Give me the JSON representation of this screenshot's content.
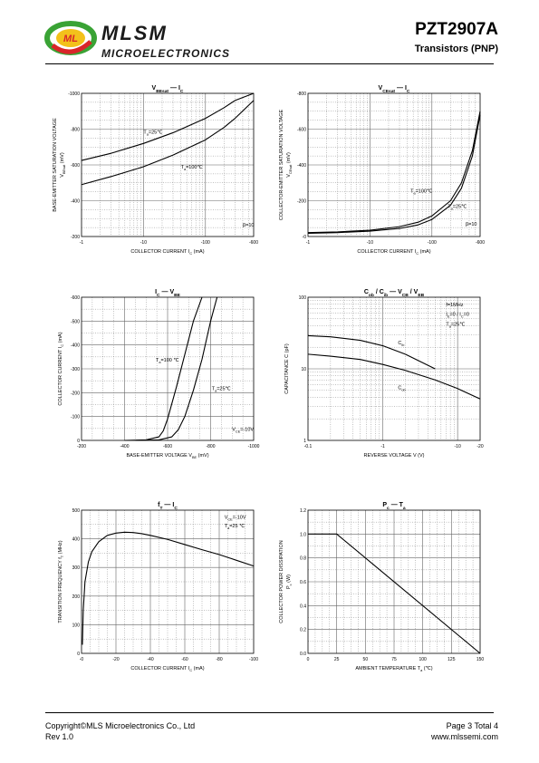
{
  "header": {
    "brand": "MLSM",
    "brand_sub": "MICROELECTRONICS",
    "logo_text": "ML",
    "part_number": "PZT2907A",
    "part_type": "Transistors (PNP)"
  },
  "footer": {
    "copyright": "Copyright©MLS Microelectronics Co., Ltd",
    "rev": "Rev 1.0",
    "page": "Page 3 Total 4",
    "website": "www.mlssemi.com"
  },
  "colors": {
    "logo_green": "#3aa335",
    "logo_red": "#d9252a",
    "logo_yellow": "#f3c11b",
    "grid": "#555555",
    "curve": "#000000"
  },
  "chart_data": [
    {
      "id": "vbesat",
      "type": "line",
      "title": "VBEsat — IC",
      "title_parts": {
        "a": "V",
        "a_sub": "BEsat",
        "b": "I",
        "b_sub": "C"
      },
      "xlabel": "COLLECTOR CURRENT   I",
      "xlabel_sub": "C",
      "xunit": "(mA)",
      "ylabel": "BASE-EMITTER SATURATION VOLTAGE",
      "ylabel_sym": "V",
      "ylabel_sub": "BEsat",
      "yunit": "(mV)",
      "x_scale": "log",
      "xlim": [
        -1,
        -600
      ],
      "x_ticks": [
        -1,
        -10,
        -100,
        -600
      ],
      "x_ticklabels": [
        "-1",
        "-10",
        "-100",
        "-600"
      ],
      "ylim": [
        -200,
        -1000
      ],
      "y_ticks": [
        -200,
        -400,
        -600,
        -800,
        -1000
      ],
      "y_ticklabels": [
        "-200",
        "-400",
        "-600",
        "-800",
        "-1000"
      ],
      "series": [
        {
          "x": [
            -1,
            -3,
            -10,
            -30,
            -100,
            -200,
            -300,
            -600
          ],
          "y": [
            -625,
            -665,
            -720,
            -780,
            -860,
            -920,
            -960,
            -1000
          ]
        },
        {
          "x": [
            -1,
            -3,
            -10,
            -30,
            -100,
            -200,
            -300,
            -600
          ],
          "y": [
            -490,
            -535,
            -590,
            -655,
            -740,
            -810,
            -860,
            -960
          ]
        }
      ],
      "annotations": [
        {
          "text": "T",
          "sub": "a",
          "rest": "=25℃",
          "x": -10,
          "y": -775
        },
        {
          "text": "T",
          "sub": "a",
          "rest": "=100℃",
          "x": -40,
          "y": -580
        },
        {
          "text": "β=10",
          "x": -400,
          "y": -255
        }
      ],
      "grid": true
    },
    {
      "id": "vcesat",
      "type": "line",
      "title": "VCEsat — IC",
      "title_parts": {
        "a": "V",
        "a_sub": "CEsat",
        "b": "I",
        "b_sub": "C"
      },
      "xlabel": "COLLECTOR CURRENT   I",
      "xlabel_sub": "C",
      "xunit": "(mA)",
      "ylabel": "COLLECTOR-EMITTER SATURATION VOLTAGE",
      "ylabel_sym": "V",
      "ylabel_sub": "CEsat",
      "yunit": "(mV)",
      "x_scale": "log",
      "xlim": [
        -1,
        -600
      ],
      "x_ticks": [
        -1,
        -10,
        -100,
        -600
      ],
      "x_ticklabels": [
        "-1",
        "-10",
        "-100",
        "-600"
      ],
      "ylim": [
        0,
        -800
      ],
      "y_ticks": [
        0,
        -200,
        -400,
        -600,
        -800
      ],
      "y_ticklabels": [
        "-0",
        "-200",
        "-400",
        "-600",
        "-800"
      ],
      "series": [
        {
          "x": [
            -1,
            -3,
            -10,
            -30,
            -60,
            -100,
            -200,
            -300,
            -450,
            -600
          ],
          "y": [
            -22,
            -26,
            -35,
            -55,
            -80,
            -115,
            -200,
            -300,
            -480,
            -700
          ]
        },
        {
          "x": [
            -1,
            -3,
            -10,
            -30,
            -60,
            -100,
            -200,
            -300,
            -450,
            -600
          ],
          "y": [
            -18,
            -22,
            -30,
            -45,
            -65,
            -95,
            -175,
            -270,
            -450,
            -680
          ]
        }
      ],
      "annotations": [
        {
          "text": "T",
          "sub": "a",
          "rest": "=100℃",
          "x": -45,
          "y": -245
        },
        {
          "text": "T",
          "sub": "a",
          "rest": "=25℃",
          "x": -180,
          "y": -160
        },
        {
          "text": "β=10",
          "x": -350,
          "y": -60
        }
      ],
      "grid": true
    },
    {
      "id": "ic_vbe",
      "type": "line",
      "title": "IC — VBE",
      "title_parts": {
        "a": "I",
        "a_sub": "C",
        "b": "V",
        "b_sub": "BE"
      },
      "xlabel": "BASE-EMITTER VOLTAGE    V",
      "xlabel_sub": "BE",
      "xunit": "(mV)",
      "ylabel": "COLLECTOR CURRENT    I",
      "ylabel_sub": "C",
      "yunit": "(mA)",
      "x_scale": "linear",
      "xlim": [
        -200,
        -1000
      ],
      "x_ticks": [
        -200,
        -400,
        -600,
        -800,
        -1000
      ],
      "x_ticklabels": [
        "-200",
        "-400",
        "-600",
        "-800",
        "-1000"
      ],
      "ylim": [
        0,
        -600
      ],
      "y_ticks": [
        0,
        -100,
        -200,
        -300,
        -400,
        -500,
        -600
      ],
      "y_ticklabels": [
        "0",
        "-100",
        "-200",
        "-300",
        "-400",
        "-500",
        "-600"
      ],
      "series": [
        {
          "x": [
            -400,
            -500,
            -560,
            -580,
            -600,
            -640,
            -680,
            -720,
            -760
          ],
          "y": [
            0,
            -2,
            -15,
            -40,
            -90,
            -220,
            -360,
            -500,
            -600
          ]
        },
        {
          "x": [
            -450,
            -560,
            -620,
            -650,
            -680,
            -720,
            -760,
            -800,
            -830
          ],
          "y": [
            0,
            -2,
            -15,
            -45,
            -100,
            -210,
            -340,
            -500,
            -600
          ]
        }
      ],
      "annotations": [
        {
          "text": "T",
          "sub": "a",
          "rest": "=100 ℃",
          "x": -545,
          "y": -330
        },
        {
          "text": "T",
          "sub": "a",
          "rest": "=25℃",
          "x": -805,
          "y": -210
        },
        {
          "text": "V",
          "sub": "CE",
          "rest": "=-10V",
          "x": -900,
          "y": -40
        }
      ],
      "grid": true
    },
    {
      "id": "cap",
      "type": "line",
      "title": "Cob / Cib — VCB / VEB",
      "title_parts": {
        "a": "C",
        "a_sub": "ob",
        "sep": " / ",
        "a2": "C",
        "a2_sub": "ib",
        "b": "V",
        "b_sub": "CB",
        "sep2": " / ",
        "b2": "V",
        "b2_sub": "EB"
      },
      "xlabel": "REVERSE  VOLTAGE   V   (V)",
      "ylabel": "CAPACITANCE   C    (pF)",
      "x_scale": "log",
      "xlim": [
        -0.1,
        -20
      ],
      "x_ticks": [
        -0.1,
        -1,
        -10,
        -20
      ],
      "x_ticklabels": [
        "-0.1",
        "-1",
        "-10",
        "-20"
      ],
      "y_scale": "log",
      "ylim": [
        1,
        100
      ],
      "y_ticks": [
        1,
        10,
        100
      ],
      "y_ticklabels": [
        "1",
        "10",
        "100"
      ],
      "series": [
        {
          "name": "Cib",
          "x": [
            -0.1,
            -0.2,
            -0.5,
            -1,
            -2,
            -5
          ],
          "y": [
            29,
            28,
            25,
            21,
            16,
            10
          ]
        },
        {
          "name": "Cob",
          "x": [
            -0.1,
            -0.2,
            -0.5,
            -1,
            -2,
            -5,
            -10,
            -20
          ],
          "y": [
            16,
            15,
            13.5,
            11.5,
            9.5,
            7,
            5.3,
            3.8
          ]
        }
      ],
      "annotations": [
        {
          "text": "C",
          "sub": "ib",
          "rest": "",
          "x": -1.6,
          "y": 22
        },
        {
          "text": "C",
          "sub": "ob",
          "rest": "",
          "x": -1.6,
          "y": 5.2
        },
        {
          "text": "f=1MHz",
          "x": -7,
          "y": 75
        },
        {
          "text": "I",
          "sub": "E",
          "rest": "=0 / I",
          "sub2": "C",
          "rest2": "=0",
          "x": -7,
          "y": 55
        },
        {
          "text": "T",
          "sub": "a",
          "rest": "=25℃",
          "x": -7,
          "y": 40
        }
      ],
      "grid": true
    },
    {
      "id": "ft",
      "type": "line",
      "title": "fT — IC",
      "title_parts": {
        "a": "f",
        "a_sub": "T",
        "b": "I",
        "b_sub": "C"
      },
      "xlabel": "COLLECTOR CURRENT   I",
      "xlabel_sub": "C",
      "xunit": "(mA)",
      "ylabel": "TRANSITION FREQUENCY   f",
      "ylabel_sub": "T",
      "yunit": "(MHz)",
      "x_scale": "linear",
      "xlim": [
        0,
        -100
      ],
      "x_ticks": [
        0,
        -20,
        -40,
        -60,
        -80,
        -100
      ],
      "x_ticklabels": [
        "-0",
        "-20",
        "-40",
        "-60",
        "-80",
        "-100"
      ],
      "ylim": [
        0,
        500
      ],
      "y_ticks": [
        0,
        100,
        200,
        300,
        400,
        500
      ],
      "y_ticklabels": [
        "0",
        "100",
        "200",
        "300",
        "400",
        "500"
      ],
      "series": [
        {
          "x": [
            -0.5,
            -1,
            -2,
            -4,
            -6,
            -10,
            -15,
            -20,
            -25,
            -30,
            -35,
            -40,
            -50,
            -60,
            -70,
            -80,
            -90,
            -100
          ],
          "y": [
            30,
            150,
            250,
            320,
            355,
            390,
            412,
            420,
            423,
            422,
            418,
            412,
            398,
            380,
            362,
            345,
            325,
            305
          ]
        }
      ],
      "annotations": [
        {
          "text": "V",
          "sub": "CE",
          "rest": "=-10V",
          "x": -83,
          "y": 470
        },
        {
          "text": "T",
          "sub": "a",
          "rest": "=25 ℃",
          "x": -83,
          "y": 440
        }
      ],
      "grid": true
    },
    {
      "id": "pc",
      "type": "line",
      "title": "Pc — Ta",
      "title_parts": {
        "a": "P",
        "a_sub": "c",
        "b": "T",
        "b_sub": "a"
      },
      "xlabel": "AMBIENT TEMPERATURE    T",
      "xlabel_sub": "a",
      "xunit": "(℃)",
      "ylabel": "COLLECTOR POWER DISSIPATION",
      "ylabel_sym": "P",
      "ylabel_sub": "c",
      "yunit": "(W)",
      "x_scale": "linear",
      "xlim": [
        0,
        150
      ],
      "x_ticks": [
        0,
        25,
        50,
        75,
        100,
        125,
        150
      ],
      "x_ticklabels": [
        "0",
        "25",
        "50",
        "75",
        "100",
        "125",
        "150"
      ],
      "ylim": [
        0,
        1.2
      ],
      "y_ticks": [
        0,
        0.2,
        0.4,
        0.6,
        0.8,
        1.0,
        1.2
      ],
      "y_ticklabels": [
        "0.0",
        "0.2",
        "0.4",
        "0.6",
        "0.8",
        "1.0",
        "1.2"
      ],
      "series": [
        {
          "x": [
            0,
            25,
            150
          ],
          "y": [
            1.0,
            1.0,
            0
          ]
        }
      ],
      "annotations": [],
      "grid": true
    }
  ]
}
